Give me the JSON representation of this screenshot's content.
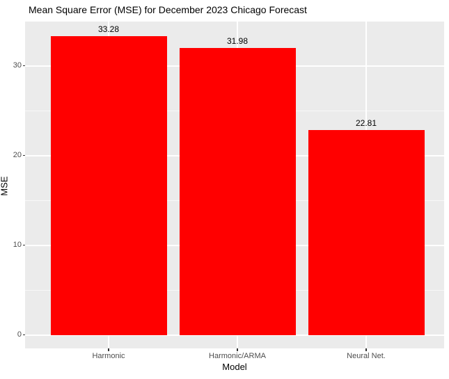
{
  "chart_data": {
    "type": "bar",
    "title": "Mean Square Error (MSE) for December 2023 Chicago Forecast",
    "categories": [
      "Harmonic",
      "Harmonic/ARMA",
      "Neural Net."
    ],
    "values": [
      33.28,
      31.98,
      22.81
    ],
    "bar_labels": [
      "33.28",
      "31.98",
      "22.81"
    ],
    "xlabel": "Model",
    "ylabel": "MSE",
    "ylim": [
      -1.51,
      34.94
    ],
    "yticks": [
      0,
      10,
      20,
      30
    ],
    "yticks_minor": [
      5,
      15,
      25
    ],
    "grid": true,
    "legend": "none",
    "panel_background": "#EBEBEB",
    "grid_color": "#FFFFFF",
    "bar_color": "#FF0000",
    "tick_color": "#333333",
    "tick_label_color": "#4D4D4D",
    "text_color": "#000000"
  }
}
